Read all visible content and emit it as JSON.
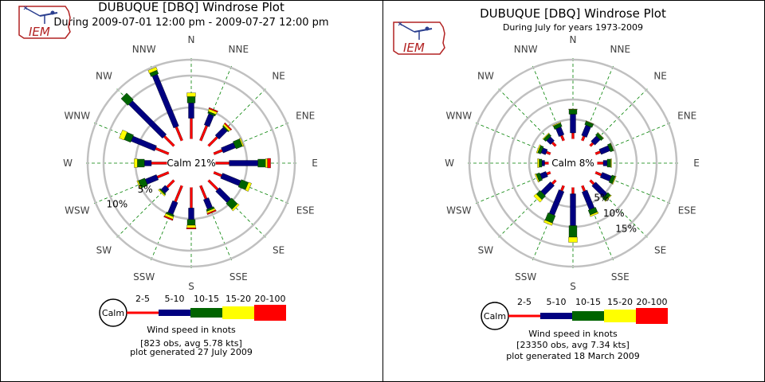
{
  "logo": {
    "text": "IEM"
  },
  "chart_data": [
    {
      "type": "windrose",
      "title": "DUBUQUE [DBQ] Windrose Plot",
      "subtitle": "During 2009-07-01 12:00 pm - 2009-07-27 12:00 pm",
      "directions": [
        "N",
        "NNE",
        "NE",
        "ENE",
        "E",
        "ESE",
        "SE",
        "SSE",
        "S",
        "SSW",
        "SW",
        "WSW",
        "W",
        "WNW",
        "NW",
        "NNW"
      ],
      "calm_label": "Calm 21%",
      "calm_percent": 21,
      "ring_labels": [
        "5%",
        "10%"
      ],
      "ring_values": [
        5,
        10
      ],
      "rlim": [
        0,
        12.5
      ],
      "speed_bins": [
        "2-5",
        "5-10",
        "10-15",
        "15-20",
        "20-100"
      ],
      "series": [
        {
          "name": "2-5",
          "values": [
            3.3,
            2.6,
            2.0,
            1.5,
            2.2,
            1.4,
            2.1,
            2.3,
            3.3,
            2.8,
            1.6,
            2.0,
            2.5,
            2.3,
            2.2,
            2.4
          ]
        },
        {
          "name": "5-10",
          "values": [
            2.4,
            1.9,
            1.8,
            2.1,
            4.5,
            3.1,
            2.5,
            1.6,
            1.8,
            2.0,
            0.9,
            1.9,
            1.1,
            4.0,
            7.5,
            8.8
          ]
        },
        {
          "name": "10-15",
          "values": [
            1.0,
            0.3,
            0.2,
            1.1,
            1.2,
            1.2,
            1.3,
            0.3,
            0.9,
            0.3,
            0.2,
            1.1,
            1.1,
            1.1,
            1.5,
            0.6
          ]
        },
        {
          "name": "15-20",
          "values": [
            0.6,
            0.4,
            0.3,
            0.2,
            0.3,
            0.5,
            0.3,
            0.3,
            0.4,
            0.4,
            0.2,
            0.2,
            0.5,
            0.8,
            0.0,
            0.5
          ]
        },
        {
          "name": "20-100",
          "values": [
            0.0,
            0.2,
            0.2,
            0.0,
            0.5,
            0.0,
            0.0,
            0.2,
            0.2,
            0.2,
            0.0,
            0.0,
            0.0,
            0.0,
            0.0,
            0.0
          ]
        }
      ],
      "legend_title": "Wind speed in knots",
      "obs_text": "[823 obs, avg 5.78 kts]",
      "generated_text": "plot generated 27 July 2009"
    },
    {
      "type": "windrose",
      "title": "DUBUQUE [DBQ] Windrose Plot",
      "subtitle": "During July for years 1973-2009",
      "directions": [
        "N",
        "NNE",
        "NE",
        "ENE",
        "E",
        "ESE",
        "SE",
        "SSE",
        "S",
        "SSW",
        "SW",
        "WSW",
        "W",
        "WNW",
        "NW",
        "NNW"
      ],
      "calm_label": "Calm 8%",
      "calm_percent": 8,
      "ring_labels": [
        "5%",
        "10%",
        "15%"
      ],
      "ring_values": [
        5,
        10,
        15
      ],
      "rlim": [
        0,
        20
      ],
      "speed_bins": [
        "2-5",
        "5-10",
        "10-15",
        "15-20",
        "20-100"
      ],
      "series": [
        {
          "name": "2-5",
          "values": [
            1.6,
            1.3,
            1.1,
            1.4,
            1.6,
            1.7,
            1.4,
            1.6,
            1.7,
            1.5,
            1.3,
            1.1,
            1.1,
            1.2,
            1.3,
            1.5
          ]
        },
        {
          "name": "5-10",
          "values": [
            4.7,
            2.8,
            1.9,
            2.4,
            1.0,
            2.5,
            4.0,
            4.8,
            8.0,
            6.4,
            3.4,
            1.6,
            0.7,
            1.2,
            1.4,
            2.1
          ]
        },
        {
          "name": "10-15",
          "values": [
            1.2,
            0.9,
            0.8,
            0.8,
            0.9,
            0.9,
            1.0,
            1.3,
            2.9,
            2.0,
            1.3,
            0.9,
            0.7,
            0.8,
            0.8,
            0.9
          ]
        },
        {
          "name": "15-20",
          "values": [
            0.1,
            0.1,
            0.1,
            0.1,
            0.2,
            0.2,
            0.2,
            0.4,
            1.3,
            0.6,
            0.8,
            0.3,
            0.4,
            0.3,
            0.2,
            0.2
          ]
        },
        {
          "name": "20-100",
          "values": [
            0.0,
            0.0,
            0.0,
            0.0,
            0.0,
            0.0,
            0.0,
            0.0,
            0.0,
            0.0,
            0.0,
            0.0,
            0.0,
            0.0,
            0.0,
            0.0
          ]
        }
      ],
      "legend_title": "Wind speed in knots",
      "obs_text": "[23350 obs, avg 7.34 kts]",
      "generated_text": "plot generated 18 March 2009"
    }
  ],
  "colors": {
    "2-5": "#ff0000",
    "5-10": "#000080",
    "10-15": "#006400",
    "15-20": "#ffff00",
    "20-100": "#ff0000",
    "ring": "#c0c0c0",
    "spoke": "#008000",
    "logo_red": "#b22222",
    "logo_blue": "#2b3f8f"
  }
}
